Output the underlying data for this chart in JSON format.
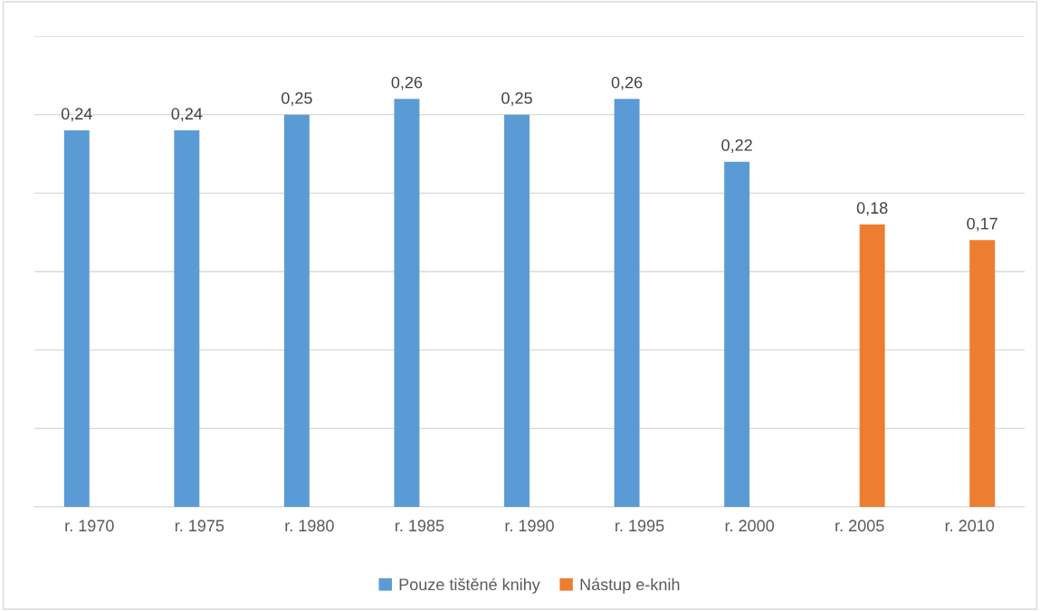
{
  "chart_data": {
    "type": "bar",
    "categories": [
      "r. 1970",
      "r. 1975",
      "r. 1980",
      "r. 1985",
      "r. 1990",
      "r. 1995",
      "r. 2000",
      "r. 2005",
      "r. 2010"
    ],
    "series": [
      {
        "name": "Pouze tištěné knihy",
        "color": "#5b9bd5",
        "values": [
          0.24,
          0.24,
          0.25,
          0.26,
          0.25,
          0.26,
          0.22,
          null,
          null
        ],
        "value_labels": [
          "0,24",
          "0,24",
          "0,25",
          "0,26",
          "0,25",
          "0,26",
          "0,22",
          null,
          null
        ]
      },
      {
        "name": "Nástup e-knih",
        "color": "#ed7d31",
        "values": [
          null,
          null,
          null,
          null,
          null,
          null,
          null,
          0.18,
          0.17
        ],
        "value_labels": [
          null,
          null,
          null,
          null,
          null,
          null,
          null,
          "0,18",
          "0,17"
        ]
      }
    ],
    "ylim": [
      0,
      0.3
    ],
    "yticks": [
      {
        "value": 0,
        "label": null
      },
      {
        "value": 0.05,
        "label": null
      },
      {
        "value": 0.1,
        "label": null
      },
      {
        "value": 0.15,
        "label": null
      },
      {
        "value": 0.2,
        "label": null
      },
      {
        "value": 0.25,
        "label": null
      },
      {
        "value": 0.3,
        "label": null
      }
    ],
    "tick_labels": "x",
    "grid": "y",
    "legend": "bottom"
  }
}
